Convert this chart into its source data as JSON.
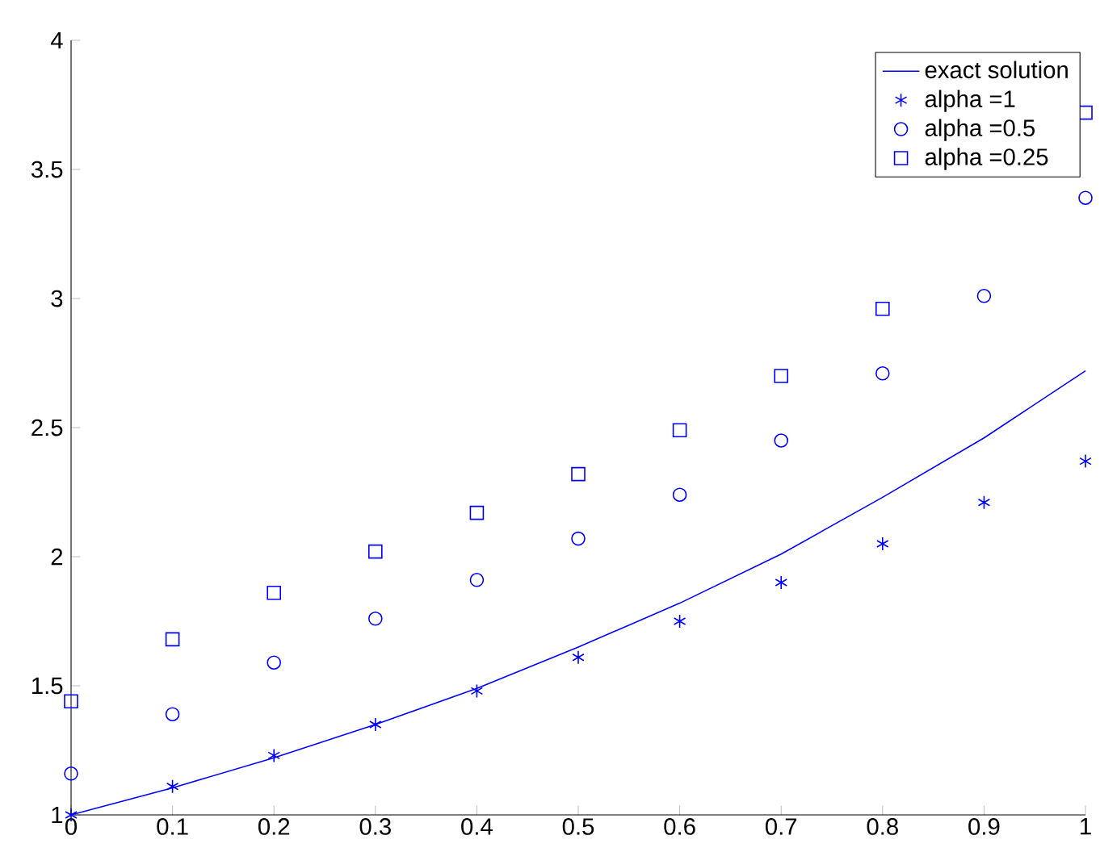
{
  "chart_data": {
    "type": "line",
    "xlim": [
      0,
      1
    ],
    "ylim": [
      1,
      4
    ],
    "x": [
      0,
      0.1,
      0.2,
      0.3,
      0.4,
      0.5,
      0.6,
      0.7,
      0.8,
      0.9,
      1
    ],
    "xticks": [
      0,
      0.1,
      0.2,
      0.3,
      0.4,
      0.5,
      0.6,
      0.7,
      0.8,
      0.9,
      1
    ],
    "yticks": [
      1,
      1.5,
      2,
      2.5,
      3,
      3.5,
      4
    ],
    "legend": "top right",
    "grid": false,
    "series": [
      {
        "name": "exact solution",
        "color": "#0000ff",
        "marker": "none",
        "values": [
          1,
          1.105,
          1.221,
          1.35,
          1.49,
          1.65,
          1.82,
          2.01,
          2.23,
          2.46,
          2.72
        ]
      },
      {
        "name": "alpha =1",
        "color": "#0000ff",
        "type": "scatter",
        "marker": "cross",
        "values": [
          1,
          1.11,
          1.23,
          1.35,
          1.48,
          1.61,
          1.75,
          1.9,
          2.05,
          2.21,
          2.37
        ]
      },
      {
        "name": "alpha =0.5",
        "color": "#0000ff",
        "type": "scatter",
        "marker": "circle",
        "values": [
          1.16,
          1.39,
          1.59,
          1.76,
          1.91,
          2.07,
          2.24,
          2.45,
          2.71,
          3.01,
          3.39
        ]
      },
      {
        "name": "alpha =0.25",
        "color": "#0000ff",
        "type": "scatter",
        "marker": "square",
        "values": [
          1.44,
          1.68,
          1.86,
          2.02,
          2.17,
          2.32,
          2.49,
          2.7,
          2.96,
          null,
          3.72
        ]
      }
    ]
  }
}
